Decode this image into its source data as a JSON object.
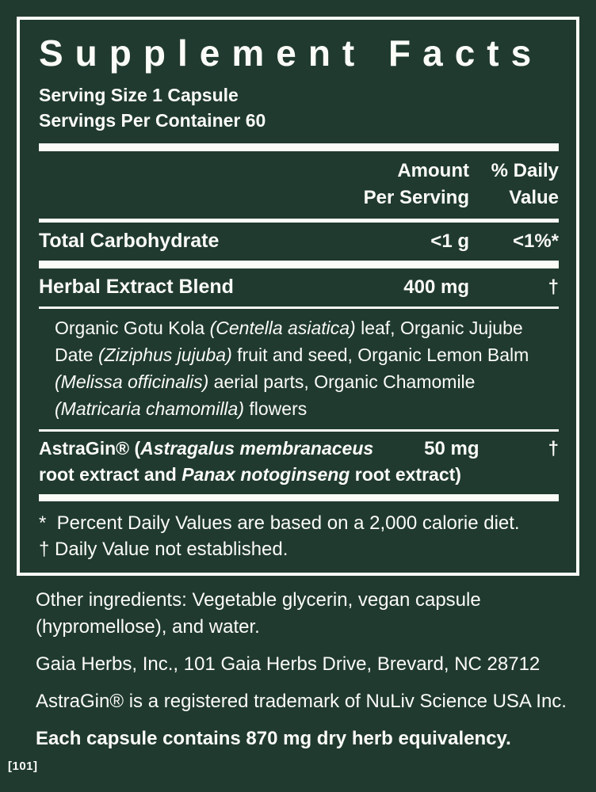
{
  "colors": {
    "background": "#203a2f",
    "foreground": "#fbfbf7"
  },
  "panel": {
    "title": "Supplement Facts",
    "serving_size": "Serving Size 1 Capsule",
    "servings_per_container": "Servings Per Container 60",
    "columns": {
      "amount_line1": "Amount",
      "amount_line2": "Per Serving",
      "dv_line1": "% Daily",
      "dv_line2": "Value"
    },
    "rows": {
      "total_carbohydrate": {
        "name": "Total Carbohydrate",
        "amount": "<1 g",
        "dv": "<1%*"
      },
      "herbal_blend": {
        "name": "Herbal Extract Blend",
        "amount": "400 mg",
        "dv": "†"
      },
      "astragin": {
        "amount": "50 mg",
        "dv": "†",
        "name_line1": [
          {
            "t": "AstraGin® ("
          },
          {
            "t": "Astragalus membranaceus",
            "i": true
          }
        ],
        "name_line2": [
          {
            "t": "root extract and "
          },
          {
            "t": "Panax notoginseng",
            "i": true
          },
          {
            "t": " root extract)"
          }
        ]
      }
    },
    "herbal_sub_lines": [
      [
        {
          "t": "Organic Gotu Kola "
        },
        {
          "t": "(Centella asiatica)",
          "i": true
        },
        {
          "t": " leaf, Organic Jujube"
        }
      ],
      [
        {
          "t": "Date "
        },
        {
          "t": "(Ziziphus jujuba)",
          "i": true
        },
        {
          "t": " fruit and seed, Organic Lemon Balm"
        }
      ],
      [
        {
          "t": "(Melissa officinalis)",
          "i": true
        },
        {
          "t": " aerial parts, Organic Chamomile"
        }
      ],
      [
        {
          "t": "(Matricaria chamomilla)",
          "i": true
        },
        {
          "t": " flowers"
        }
      ]
    ],
    "footnotes": [
      "*  Percent Daily Values are based on a 2,000 calorie diet.",
      "† Daily Value not established."
    ]
  },
  "footer": {
    "other_ingredients_line1": "Other ingredients: Vegetable glycerin, vegan capsule",
    "other_ingredients_line2": "(hypromellose), and water.",
    "address": "Gaia Herbs, Inc., 101 Gaia Herbs Drive, Brevard, NC 28712",
    "trademark": "AstraGin® is a registered trademark of NuLiv Science USA Inc.",
    "equivalency": "Each capsule contains 870 mg dry herb equivalency.",
    "code": "[101]"
  }
}
